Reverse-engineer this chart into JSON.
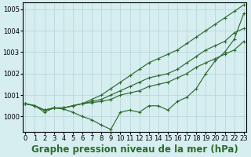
{
  "title": "Graphe pression niveau de la mer (hPa)",
  "bg_color": "#d6eef0",
  "grid_color": "#b8d8da",
  "line_color": "#2d6a2d",
  "ylim": [
    999.3,
    1005.3
  ],
  "xlim": [
    -0.3,
    23.3
  ],
  "yticks": [
    1000,
    1001,
    1002,
    1003,
    1004,
    1005
  ],
  "xticks": [
    0,
    1,
    2,
    3,
    4,
    5,
    6,
    7,
    8,
    9,
    10,
    11,
    12,
    13,
    14,
    15,
    16,
    17,
    18,
    19,
    20,
    21,
    22,
    23
  ],
  "series": [
    [
      1000.6,
      1000.5,
      1000.3,
      1000.4,
      1000.4,
      1000.5,
      1000.6,
      1000.8,
      1001.0,
      1001.3,
      1001.6,
      1001.9,
      1002.2,
      1002.5,
      1002.7,
      1002.9,
      1003.1,
      1003.4,
      1003.7,
      1004.0,
      1004.3,
      1004.6,
      1004.9,
      1005.2
    ],
    [
      1000.6,
      1000.5,
      1000.3,
      1000.4,
      1000.4,
      1000.5,
      1000.6,
      1000.7,
      1000.8,
      1001.0,
      1001.2,
      1001.4,
      1001.6,
      1001.8,
      1001.9,
      1002.0,
      1002.2,
      1002.5,
      1002.8,
      1003.1,
      1003.3,
      1003.5,
      1003.9,
      1004.1
    ],
    [
      1000.6,
      1000.5,
      1000.3,
      1000.4,
      1000.4,
      1000.5,
      1000.6,
      1000.65,
      1000.7,
      1000.8,
      1001.0,
      1001.1,
      1001.2,
      1001.4,
      1001.5,
      1001.6,
      1001.8,
      1002.0,
      1002.3,
      1002.5,
      1002.7,
      1002.9,
      1003.1,
      1003.5
    ],
    [
      1000.6,
      1000.5,
      1000.2,
      1000.4,
      1000.35,
      1000.2,
      1000.0,
      999.85,
      999.6,
      999.4,
      1000.2,
      1000.3,
      1000.2,
      1000.5,
      1000.5,
      1000.3,
      1000.7,
      1000.9,
      1001.3,
      1002.0,
      1002.6,
      1003.0,
      1003.6,
      1004.8
    ]
  ],
  "title_fontsize": 8.5,
  "tick_fontsize": 6,
  "marker": "+",
  "marker_size": 3,
  "line_width": 0.85
}
